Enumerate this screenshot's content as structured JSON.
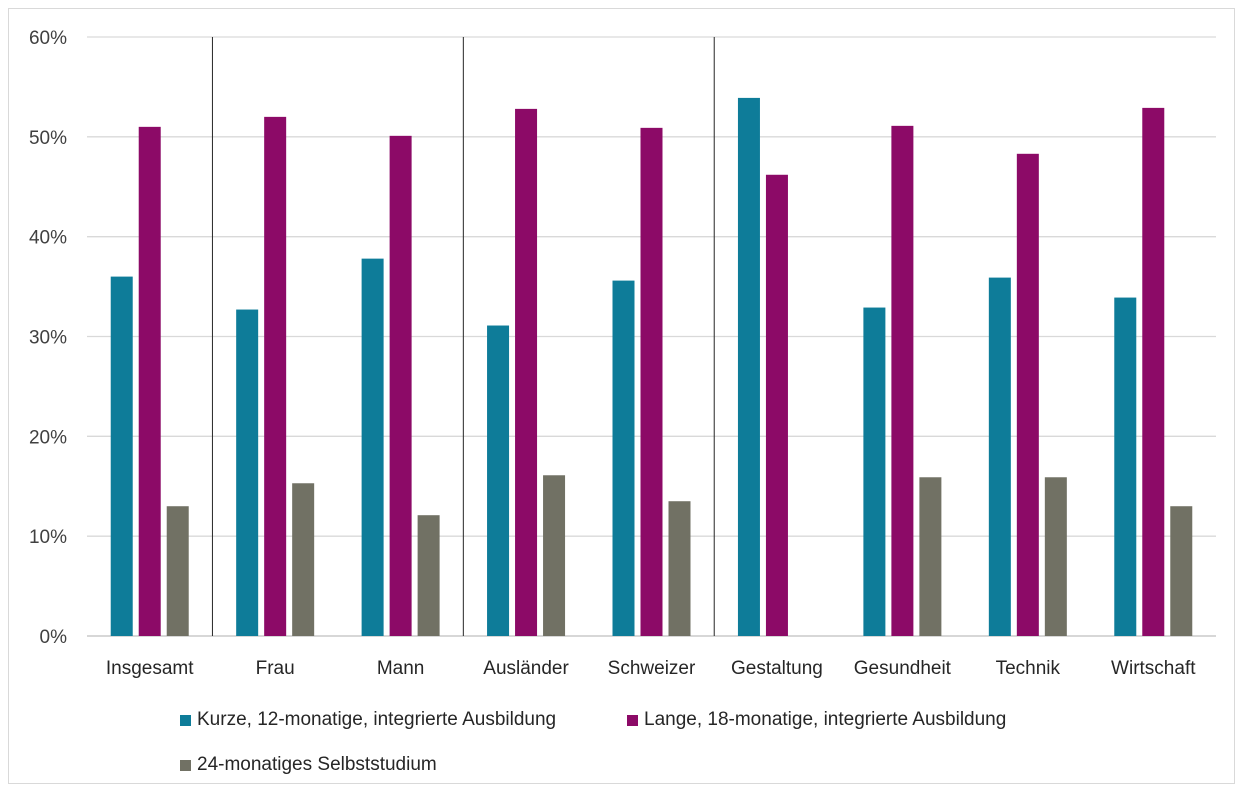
{
  "chart_data": {
    "type": "bar",
    "title": "",
    "xlabel": "",
    "ylabel": "",
    "categories": [
      "Insgesamt",
      "Frau",
      "Mann",
      "Ausländer",
      "Schweizer",
      "Gestaltung",
      "Gesundheit",
      "Technik",
      "Wirtschaft"
    ],
    "series": [
      {
        "name": "Kurze, 12-monatige, integrierte Ausbildung",
        "color": "#0E7C99",
        "values": [
          36,
          32.7,
          37.8,
          31.1,
          35.6,
          53.9,
          32.9,
          35.9,
          33.9
        ]
      },
      {
        "name": "Lange, 18-monatige, integrierte Ausbildung",
        "color": "#8C0A67",
        "values": [
          51,
          52,
          50.1,
          52.8,
          50.9,
          46.2,
          51.1,
          48.3,
          52.9
        ]
      },
      {
        "name": "24-monatiges Selbststudium",
        "color": "#717164",
        "values": [
          13,
          15.3,
          12.1,
          16.1,
          13.5,
          0,
          15.9,
          15.9,
          13
        ]
      }
    ],
    "ylim": [
      0,
      60
    ],
    "yticks": [
      "0%",
      "10%",
      "20%",
      "30%",
      "40%",
      "50%",
      "60%"
    ],
    "grid": true,
    "group_separators_after": [
      "Insgesamt",
      "Mann",
      "Schweizer"
    ],
    "legend_position": "bottom"
  }
}
